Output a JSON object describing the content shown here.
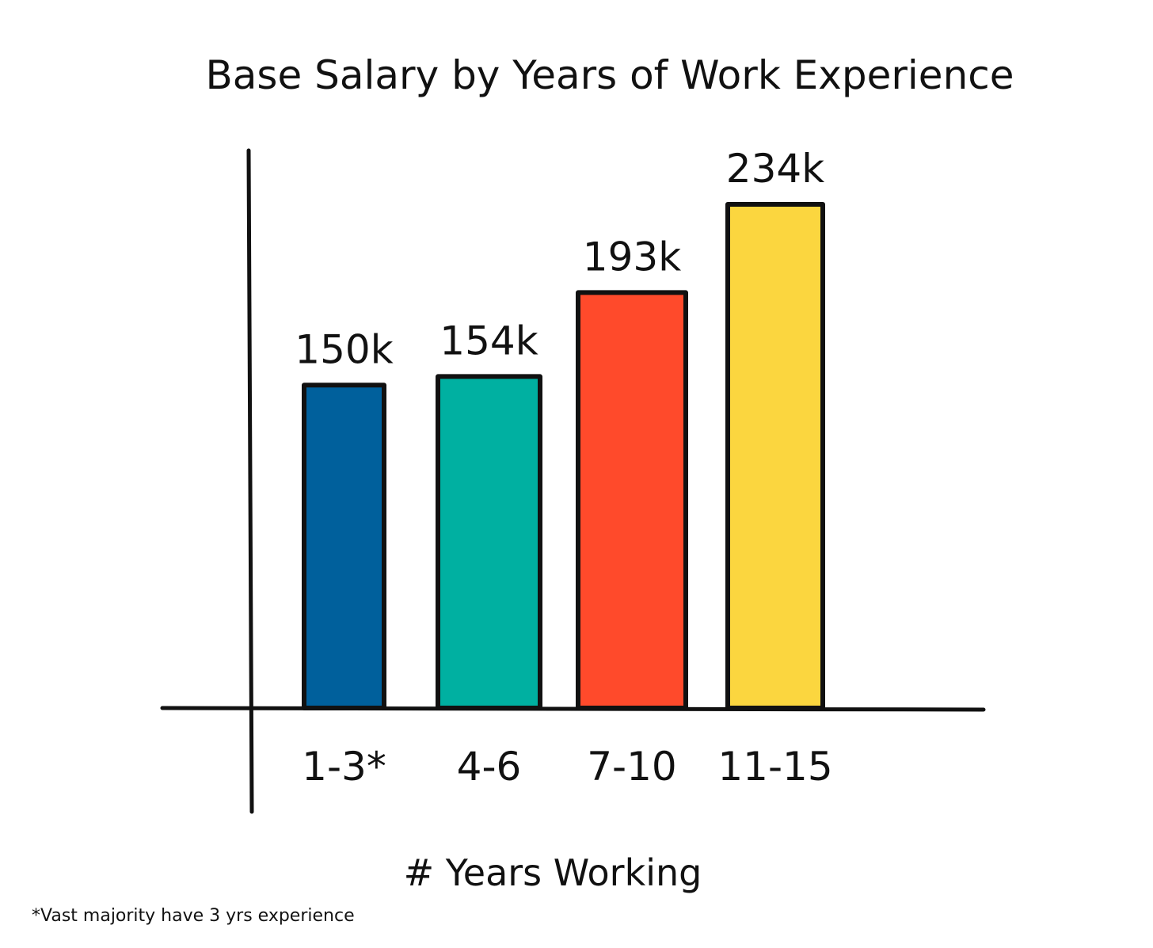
{
  "chart_data": {
    "type": "bar",
    "title": "Base Salary by Years of Work Experience",
    "xlabel": "# Years Working",
    "ylabel": "",
    "footnote": "*Vast majority have 3 yrs experience",
    "categories": [
      "1-3*",
      "4-6",
      "7-10",
      "11-15"
    ],
    "values": [
      150,
      154,
      193,
      234
    ],
    "value_labels": [
      "150k",
      "154k",
      "193k",
      "234k"
    ],
    "colors": [
      "#00609c",
      "#00b0a1",
      "#ff4a2b",
      "#fbd63f"
    ],
    "ylim": [
      0,
      250
    ],
    "grid": false,
    "legend": "none"
  }
}
